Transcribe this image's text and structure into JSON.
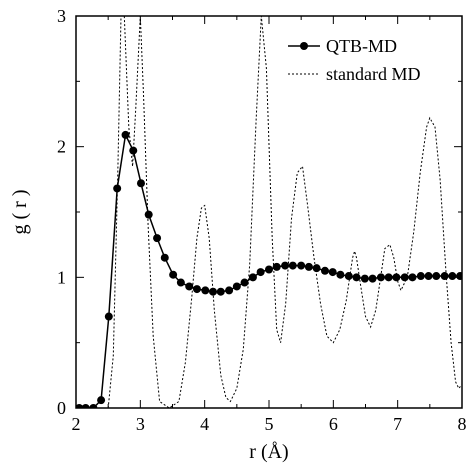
{
  "chart_data": {
    "type": "line",
    "title": "",
    "xlabel": "r (Å)",
    "ylabel": "g ( r )",
    "xlim": [
      2,
      8
    ],
    "ylim": [
      0,
      3
    ],
    "x_ticks": [
      2,
      3,
      4,
      5,
      6,
      7,
      8
    ],
    "y_ticks": [
      0,
      1,
      2,
      3
    ],
    "grid": false,
    "legend_position": "top-right",
    "series": [
      {
        "name": "QTB-MD",
        "style": "solid line with filled circle markers",
        "color": "#000000",
        "x": [
          2.05,
          2.15,
          2.27,
          2.39,
          2.51,
          2.64,
          2.77,
          2.89,
          3.01,
          3.13,
          3.26,
          3.38,
          3.51,
          3.63,
          3.76,
          3.88,
          4.01,
          4.13,
          4.25,
          4.38,
          4.5,
          4.62,
          4.75,
          4.87,
          5.0,
          5.12,
          5.25,
          5.37,
          5.5,
          5.62,
          5.74,
          5.87,
          5.99,
          6.11,
          6.24,
          6.36,
          6.49,
          6.61,
          6.74,
          6.86,
          6.98,
          7.11,
          7.23,
          7.36,
          7.48,
          7.6,
          7.73,
          7.85,
          7.97
        ],
        "values": [
          0.0,
          0.0,
          0.0,
          0.06,
          0.7,
          1.68,
          2.09,
          1.97,
          1.72,
          1.48,
          1.3,
          1.15,
          1.02,
          0.96,
          0.93,
          0.91,
          0.9,
          0.89,
          0.89,
          0.9,
          0.93,
          0.96,
          1.0,
          1.04,
          1.06,
          1.08,
          1.09,
          1.09,
          1.09,
          1.08,
          1.07,
          1.05,
          1.04,
          1.02,
          1.01,
          1.0,
          0.99,
          0.99,
          1.0,
          1.0,
          1.0,
          1.0,
          1.0,
          1.01,
          1.01,
          1.01,
          1.01,
          1.01,
          1.01
        ]
      },
      {
        "name": "standard MD",
        "style": "dotted line",
        "color": "#000000",
        "x": [
          2.0,
          2.5,
          2.58,
          2.65,
          2.7,
          2.75,
          2.82,
          2.88,
          2.93,
          3.0,
          3.05,
          3.12,
          3.2,
          3.3,
          3.45,
          3.6,
          3.7,
          3.8,
          3.88,
          3.95,
          4.0,
          4.07,
          4.15,
          4.25,
          4.33,
          4.4,
          4.5,
          4.6,
          4.7,
          4.8,
          4.88,
          4.96,
          5.05,
          5.12,
          5.18,
          5.26,
          5.35,
          5.44,
          5.52,
          5.6,
          5.7,
          5.8,
          5.9,
          6.0,
          6.1,
          6.2,
          6.3,
          6.33,
          6.36,
          6.42,
          6.5,
          6.58,
          6.66,
          6.75,
          6.8,
          6.88,
          6.94,
          7.0,
          7.05,
          7.15,
          7.25,
          7.35,
          7.45,
          7.5,
          7.58,
          7.66,
          7.75,
          7.83,
          7.9,
          7.95,
          8.0
        ],
        "values": [
          0.0,
          0.0,
          0.4,
          1.8,
          3.0,
          3.0,
          2.15,
          1.85,
          2.3,
          3.0,
          2.4,
          1.4,
          0.55,
          0.05,
          0.0,
          0.05,
          0.35,
          0.85,
          1.3,
          1.53,
          1.55,
          1.3,
          0.75,
          0.25,
          0.08,
          0.05,
          0.15,
          0.45,
          1.1,
          2.2,
          3.0,
          2.6,
          1.3,
          0.6,
          0.5,
          0.8,
          1.45,
          1.8,
          1.85,
          1.55,
          1.15,
          0.8,
          0.55,
          0.5,
          0.6,
          0.82,
          1.15,
          1.2,
          1.15,
          0.95,
          0.7,
          0.62,
          0.75,
          1.05,
          1.22,
          1.25,
          1.15,
          0.97,
          0.9,
          1.0,
          1.35,
          1.8,
          2.15,
          2.22,
          2.15,
          1.75,
          1.05,
          0.5,
          0.2,
          0.15,
          0.18
        ]
      }
    ]
  }
}
